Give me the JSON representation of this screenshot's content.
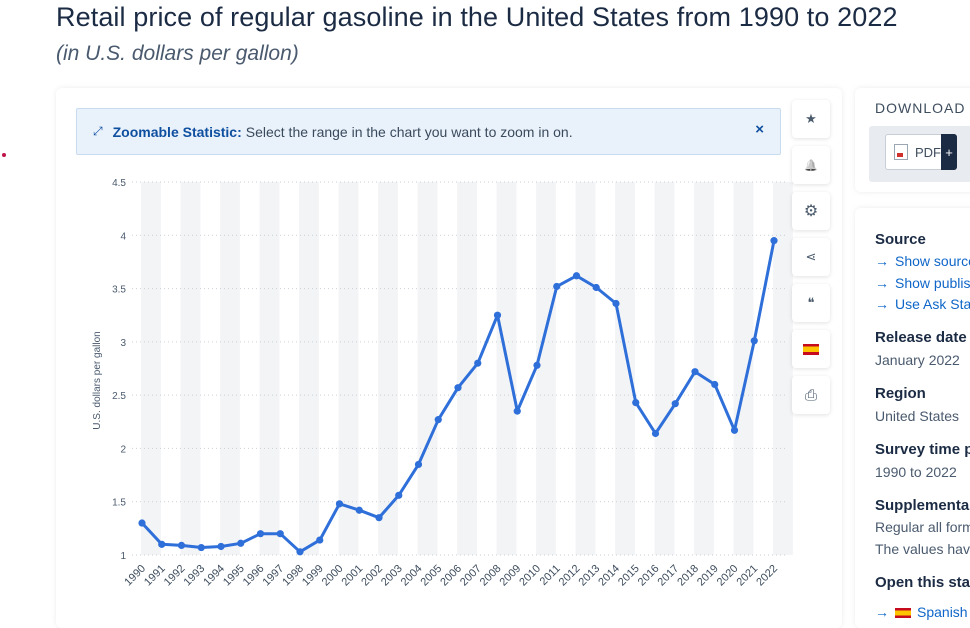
{
  "header": {
    "title": "Retail price of regular gasoline in the United States from 1990 to 2022",
    "subtitle": "(in U.S. dollars per gallon)"
  },
  "zoom_banner": {
    "label": "Zoomable Statistic:",
    "text": "Select the range in the chart you want to zoom in on.",
    "close": "×"
  },
  "toolbar": {
    "star": "★",
    "bell": "🔔",
    "gear": "⚙",
    "share": "⋖",
    "quote": "❝",
    "print": "⎙"
  },
  "download": {
    "title": "DOWNLOAD",
    "pdf_label": "PDF",
    "plus": "+"
  },
  "info": {
    "source_heading": "Source",
    "links": [
      "Show source",
      "Show publisher",
      "Use Ask Statista"
    ],
    "release_heading": "Release date",
    "release_value": "January 2022",
    "region_heading": "Region",
    "region_value": "United States",
    "survey_heading": "Survey time period",
    "survey_value": "1990 to 2022",
    "supplementary_heading": "Supplementary notes",
    "supplementary_lines": [
      "Regular all formulations.",
      "The values have been"
    ],
    "open_heading": "Open this statistic in",
    "open_language": "Spanish"
  },
  "colors": {
    "line": "#2f6fd9",
    "grid_band": "#f3f4f6",
    "accent": "#0f4fa0"
  },
  "chart_data": {
    "type": "line",
    "title": "Retail price of regular gasoline in the United States from 1990 to 2022",
    "xlabel": "",
    "ylabel": "U.S. dollars per gallon",
    "ylim": [
      1,
      4.5
    ],
    "yticks": [
      1,
      1.5,
      2,
      2.5,
      3,
      3.5,
      4,
      4.5
    ],
    "categories": [
      "1990",
      "1991",
      "1992",
      "1993",
      "1994",
      "1995",
      "1996",
      "1997",
      "1998",
      "1999",
      "2000",
      "2001",
      "2002",
      "2003",
      "2004",
      "2005",
      "2006",
      "2007",
      "2008",
      "2009",
      "2010",
      "2011",
      "2012",
      "2013",
      "2014",
      "2015",
      "2016",
      "2017",
      "2018",
      "2019",
      "2020",
      "2021",
      "2022"
    ],
    "values": [
      1.3,
      1.1,
      1.09,
      1.07,
      1.08,
      1.11,
      1.2,
      1.2,
      1.03,
      1.14,
      1.48,
      1.42,
      1.35,
      1.56,
      1.85,
      2.27,
      2.57,
      2.8,
      3.25,
      2.35,
      2.78,
      3.52,
      3.62,
      3.51,
      3.36,
      2.43,
      2.14,
      2.42,
      2.72,
      2.6,
      2.17,
      3.01,
      3.95
    ],
    "grid": true
  }
}
